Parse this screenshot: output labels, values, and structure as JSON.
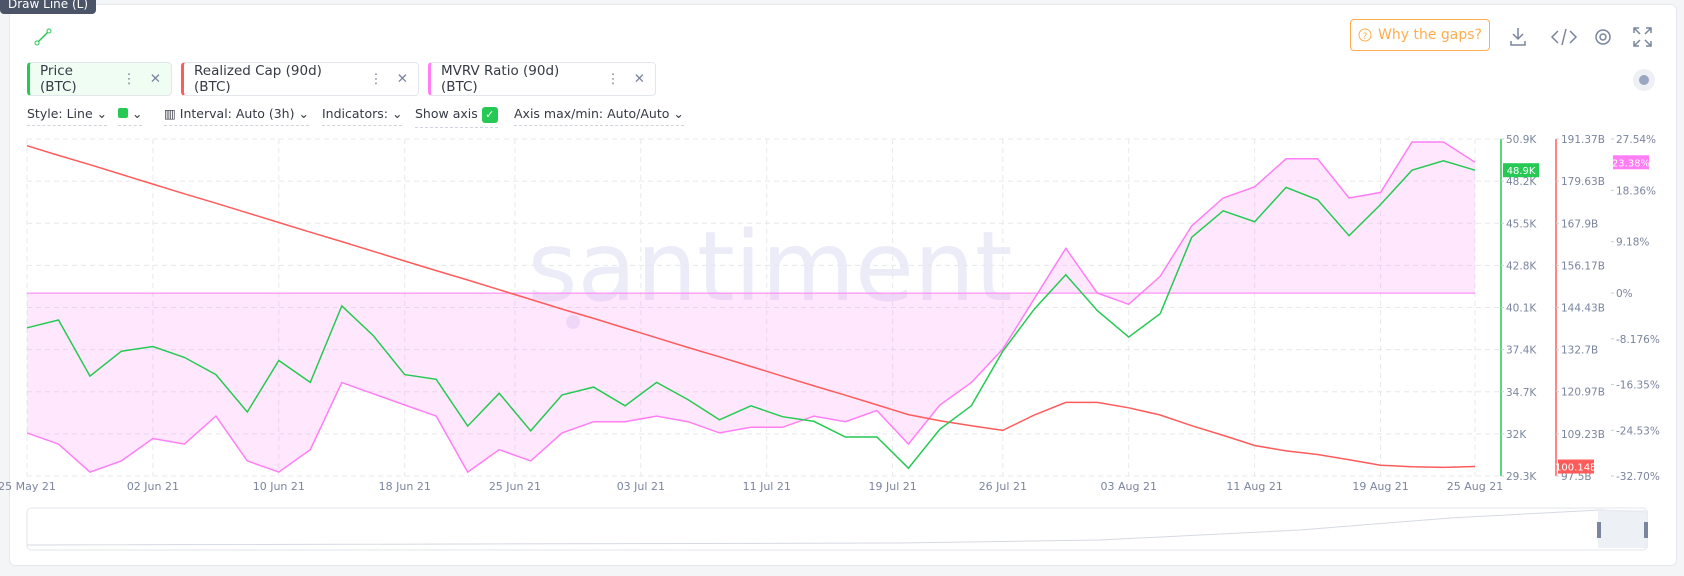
{
  "ui": {
    "tooltip": "Draw Line (L)",
    "gaps_button": "Why the gaps?",
    "style": "Style: Line",
    "interval": "Interval: Auto (3h)",
    "indicators": "Indicators:",
    "show_axis": "Show axis",
    "axis_minmax": "Axis max/min: Auto/Auto",
    "watermark": "santiment"
  },
  "chart_data": {
    "type": "line",
    "grid": true,
    "x": [
      "2021-05-25",
      "2021-05-27",
      "2021-05-29",
      "2021-05-31",
      "2021-06-02",
      "2021-06-04",
      "2021-06-06",
      "2021-06-08",
      "2021-06-10",
      "2021-06-12",
      "2021-06-14",
      "2021-06-16",
      "2021-06-18",
      "2021-06-20",
      "2021-06-22",
      "2021-06-24",
      "2021-06-26",
      "2021-06-28",
      "2021-06-30",
      "2021-07-02",
      "2021-07-04",
      "2021-07-06",
      "2021-07-08",
      "2021-07-10",
      "2021-07-12",
      "2021-07-14",
      "2021-07-16",
      "2021-07-18",
      "2021-07-20",
      "2021-07-22",
      "2021-07-24",
      "2021-07-26",
      "2021-07-28",
      "2021-07-30",
      "2021-08-01",
      "2021-08-03",
      "2021-08-05",
      "2021-08-07",
      "2021-08-09",
      "2021-08-11",
      "2021-08-13",
      "2021-08-15",
      "2021-08-17",
      "2021-08-19",
      "2021-08-21",
      "2021-08-23",
      "2021-08-25"
    ],
    "xlim": [
      "2021-05-25",
      "2021-08-25"
    ],
    "xticks": [
      {
        "value": "2021-05-25",
        "label": "25 May 21"
      },
      {
        "value": "2021-06-02",
        "label": "02 Jun 21"
      },
      {
        "value": "2021-06-10",
        "label": "10 Jun 21"
      },
      {
        "value": "2021-06-18",
        "label": "18 Jun 21"
      },
      {
        "value": "2021-06-25",
        "label": "25 Jun 21"
      },
      {
        "value": "2021-07-03",
        "label": "03 Jul 21"
      },
      {
        "value": "2021-07-11",
        "label": "11 Jul 21"
      },
      {
        "value": "2021-07-19",
        "label": "19 Jul 21"
      },
      {
        "value": "2021-07-26",
        "label": "26 Jul 21"
      },
      {
        "value": "2021-08-03",
        "label": "03 Aug 21"
      },
      {
        "value": "2021-08-11",
        "label": "11 Aug 21"
      },
      {
        "value": "2021-08-19",
        "label": "19 Aug 21"
      },
      {
        "value": "2021-08-25",
        "label": "25 Aug 21"
      }
    ],
    "ylim": [
      29300,
      50900
    ],
    "yticks": [
      {
        "value": 29300,
        "label": "29.3K"
      },
      {
        "value": 32000,
        "label": "32K"
      },
      {
        "value": 34700,
        "label": "34.7K"
      },
      {
        "value": 37400,
        "label": "37.4K"
      },
      {
        "value": 40100,
        "label": "40.1K"
      },
      {
        "value": 42800,
        "label": "42.8K"
      },
      {
        "value": 45500,
        "label": "45.5K"
      },
      {
        "value": 48200,
        "label": "48.2K"
      },
      {
        "value": 50900,
        "label": "50.9K"
      }
    ],
    "y2lim": [
      97500000000,
      191370000000
    ],
    "y2ticks": [
      {
        "value": 97500000000,
        "label": "97.5B"
      },
      {
        "value": 109230000000,
        "label": "109.23B"
      },
      {
        "value": 120970000000,
        "label": "120.97B"
      },
      {
        "value": 132700000000,
        "label": "132.7B"
      },
      {
        "value": 144430000000,
        "label": "144.43B"
      },
      {
        "value": 156170000000,
        "label": "156.17B"
      },
      {
        "value": 167900000000,
        "label": "167.9B"
      },
      {
        "value": 179630000000,
        "label": "179.63B"
      },
      {
        "value": 191370000000,
        "label": "191.37B"
      }
    ],
    "y3lim": [
      -32.7,
      27.54
    ],
    "y3ticks": [
      {
        "value": -32.7,
        "label": "-32.70%"
      },
      {
        "value": -24.53,
        "label": "-24.53%"
      },
      {
        "value": -16.35,
        "label": "-16.35%"
      },
      {
        "value": -8.176,
        "label": "-8.176%"
      },
      {
        "value": 0,
        "label": "0%"
      },
      {
        "value": 9.18,
        "label": "9.18%"
      },
      {
        "value": 18.36,
        "label": "18.36%"
      },
      {
        "value": 27.54,
        "label": "27.54%"
      }
    ],
    "series": [
      {
        "name": "Price (BTC)",
        "color": "#26c953",
        "axis": "y",
        "last_value_label": "48.9K",
        "values": [
          38800,
          39300,
          35700,
          37300,
          37600,
          36900,
          35800,
          33400,
          36700,
          35300,
          40200,
          38300,
          35800,
          35500,
          32500,
          34600,
          32200,
          34500,
          35000,
          33800,
          35300,
          34200,
          32900,
          33800,
          33100,
          32800,
          31800,
          31800,
          29800,
          32300,
          33800,
          37300,
          40000,
          42200,
          39900,
          38200,
          39700,
          44600,
          46300,
          45600,
          47800,
          47000,
          44700,
          46700,
          48900,
          49500,
          48900
        ]
      },
      {
        "name": "Realized Cap (90d) (BTC)",
        "color": "#ff5b5b",
        "axis": "y2",
        "last_value_label": "100.14B",
        "values": [
          189500000000,
          186800000000,
          184200000000,
          181500000000,
          178800000000,
          176100000000,
          173500000000,
          170800000000,
          168100000000,
          165400000000,
          162800000000,
          160100000000,
          157400000000,
          154700000000,
          152100000000,
          149400000000,
          146700000000,
          144000000000,
          141400000000,
          138700000000,
          136000000000,
          133300000000,
          130700000000,
          128000000000,
          125300000000,
          122600000000,
          120000000000,
          117300000000,
          114600000000,
          112900000000,
          111500000000,
          110200000000,
          114500000000,
          118000000000,
          118000000000,
          116500000000,
          114500000000,
          111500000000,
          108800000000,
          106000000000,
          104500000000,
          103500000000,
          102000000000,
          100500000000,
          100100000000,
          99900000000,
          100140000000
        ]
      },
      {
        "name": "MVRV Ratio (90d) (BTC)",
        "color": "#ff7ef5",
        "axis": "y3",
        "area": true,
        "last_value_label": "23.38%",
        "values": [
          -25,
          -27,
          -32,
          -30,
          -26,
          -27,
          -22,
          -30,
          -32,
          -28,
          -16,
          -18,
          -20,
          -22,
          -32,
          -28,
          -30,
          -25,
          -23,
          -23,
          -22,
          -23,
          -25,
          -24,
          -24,
          -22,
          -23,
          -21,
          -27,
          -20,
          -16,
          -10,
          -1,
          8,
          0,
          -2,
          3,
          12,
          17,
          19,
          24,
          24,
          17,
          18,
          27,
          27,
          23.38
        ]
      }
    ]
  }
}
